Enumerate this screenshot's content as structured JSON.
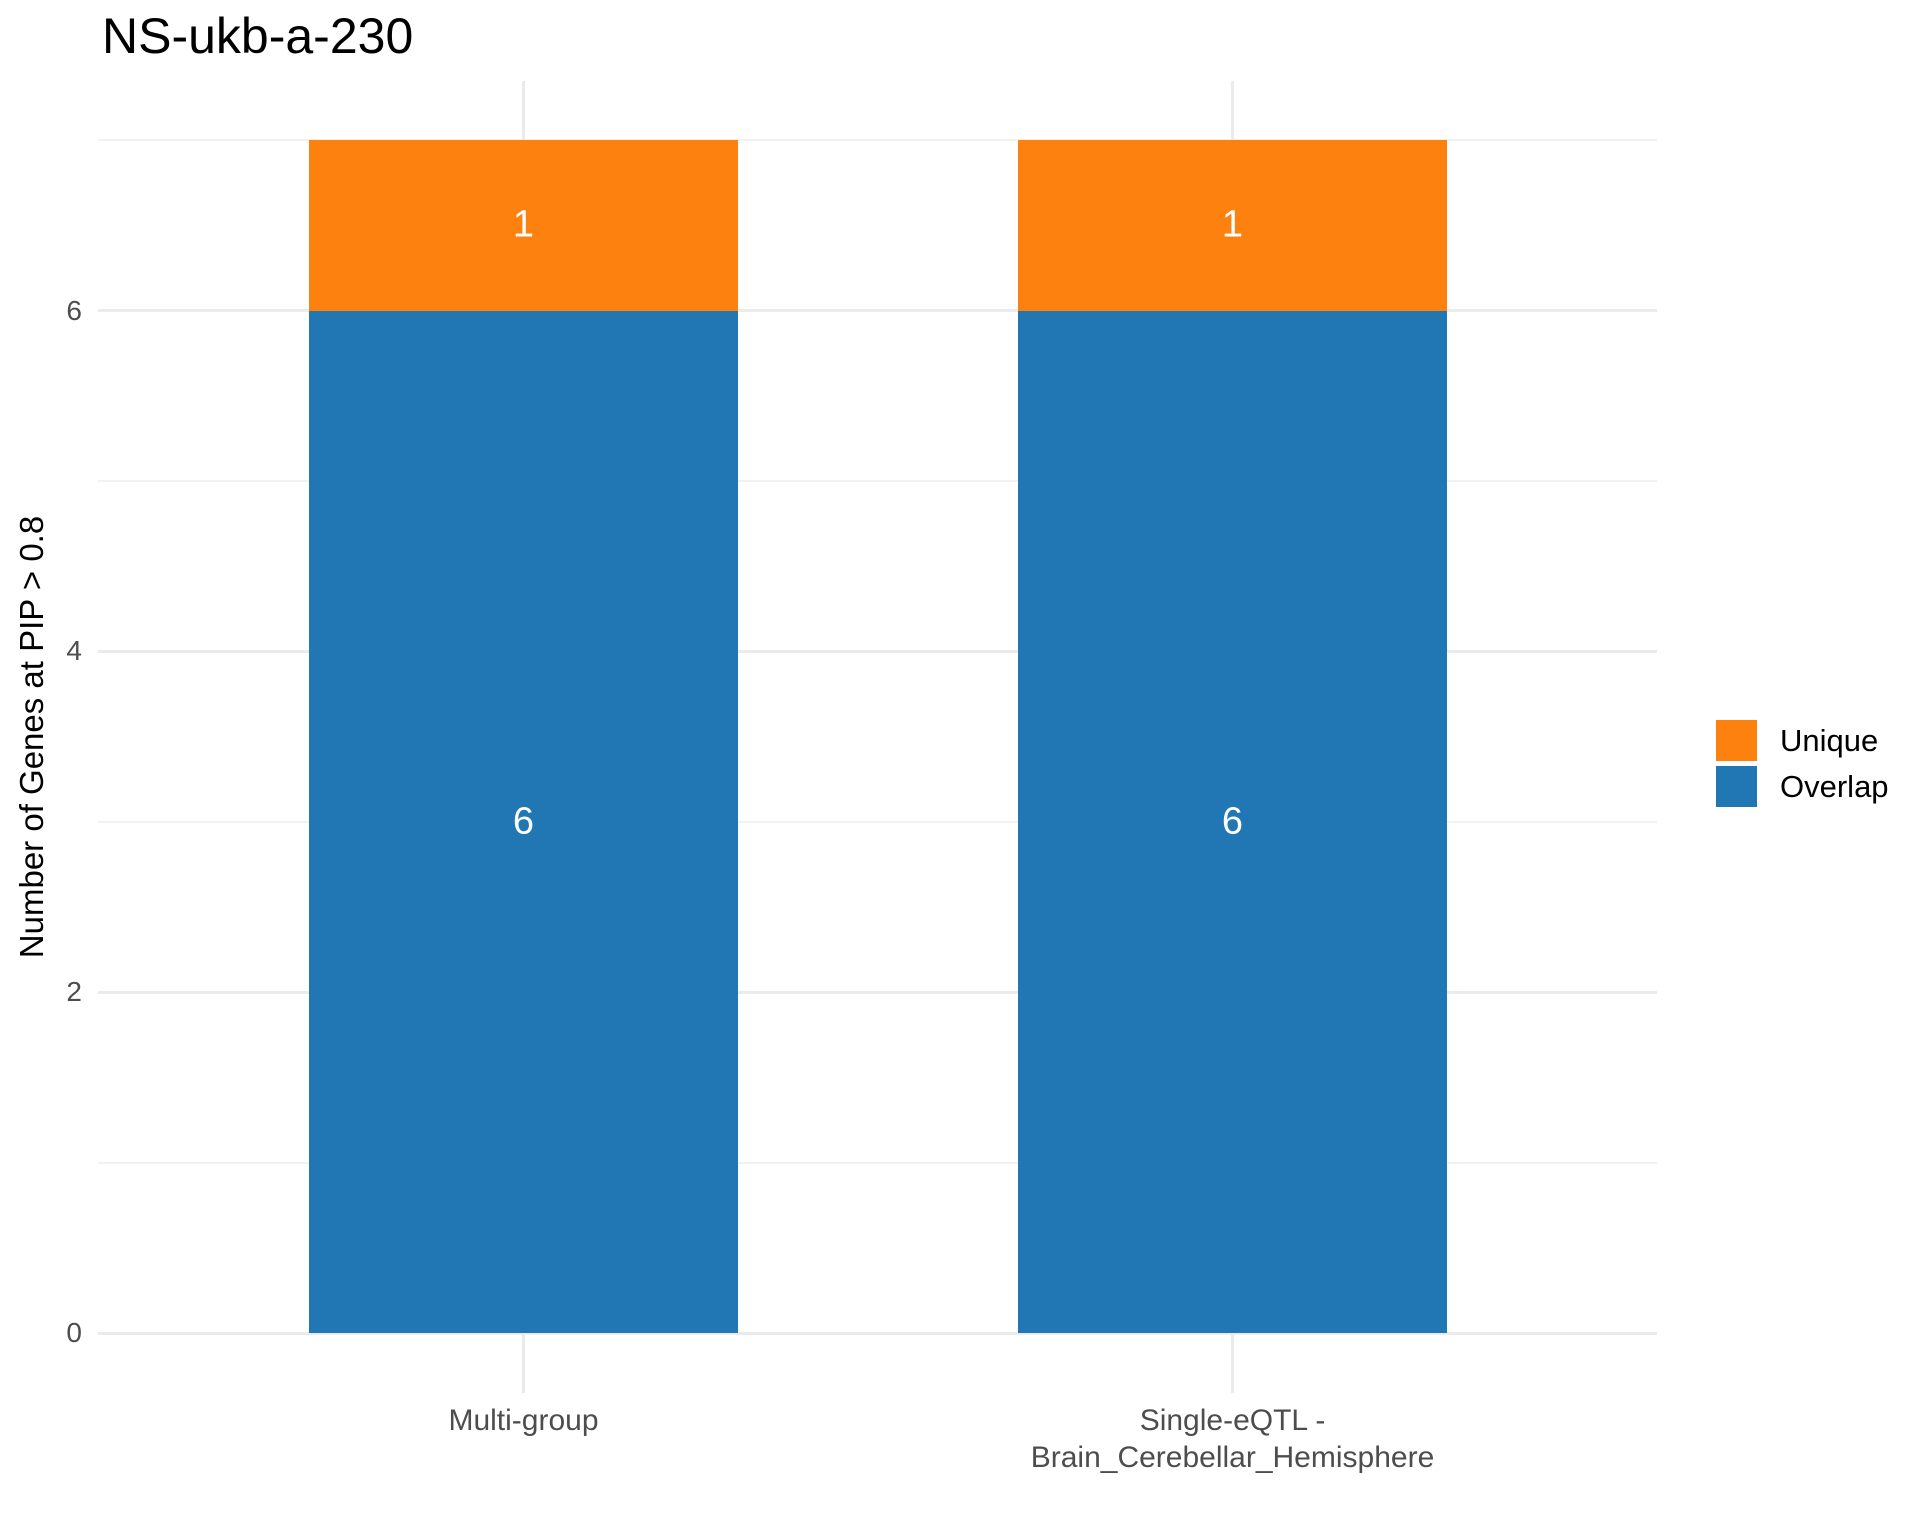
{
  "chart_data": {
    "type": "bar",
    "stacked": true,
    "title": "NS-ukb-a-230",
    "ylabel": "Number of Genes at PIP > 0.8",
    "xlabel": "",
    "categories": [
      "Multi-group",
      "Single-eQTL -\nBrain_Cerebellar_Hemisphere"
    ],
    "series": [
      {
        "name": "Overlap",
        "color": "#2077B4",
        "values": [
          6,
          6
        ]
      },
      {
        "name": "Unique",
        "color": "#FD810E",
        "values": [
          1,
          1
        ]
      }
    ],
    "bar_totals": [
      7,
      7
    ],
    "segment_labels": {
      "Overlap": [
        "6",
        "6"
      ],
      "Unique": [
        "1",
        "1"
      ]
    },
    "yticks": [
      "0",
      "2",
      "4",
      "6"
    ],
    "ytick_values": [
      0,
      2,
      4,
      6
    ],
    "minor_gridline_values": [
      1,
      3,
      5,
      7
    ],
    "ylim": [
      0,
      7
    ],
    "grid": true,
    "legend_position": "right",
    "legend_order": [
      "Unique",
      "Overlap"
    ],
    "colors": {
      "unique": "#FD810E",
      "overlap": "#2077B4",
      "grid_major": "#EBEBEB",
      "grid_minor": "#F2F2F2",
      "tick_text": "#4D4D4D",
      "title_text": "#000000",
      "bar_label_text": "#FFFFFF",
      "background": "#FFFFFF"
    }
  }
}
